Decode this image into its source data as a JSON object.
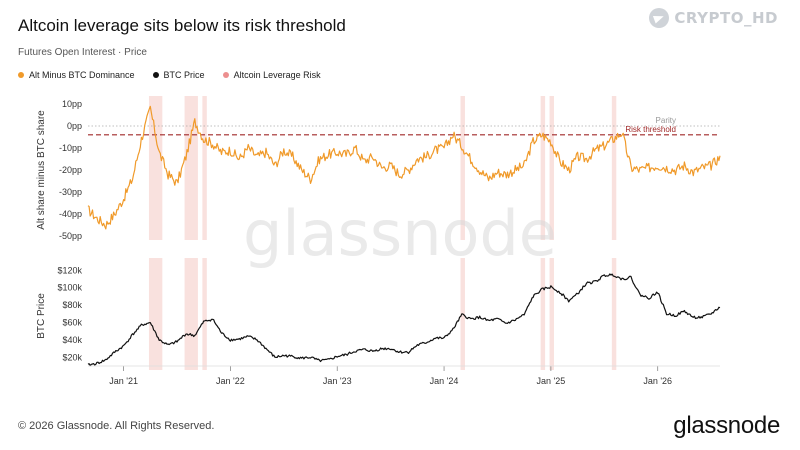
{
  "header": {
    "title": "Altcoin leverage sits below its risk threshold",
    "subtitle": "Futures Open Interest · Price"
  },
  "legend": [
    {
      "label": "Alt Minus BTC Dominance",
      "color": "#f09a2a"
    },
    {
      "label": "BTC Price",
      "color": "#111111"
    },
    {
      "label": "Altcoin Leverage Risk",
      "color": "#ec8f8f"
    }
  ],
  "badge": {
    "text": "CRYPTO_HD",
    "icon": "telegram-icon"
  },
  "watermark": "glassnode",
  "footer": {
    "copyright": "© 2026 Glassnode. All Rights Reserved.",
    "logo": "glassnode"
  },
  "chart_data": [
    {
      "type": "line",
      "ylabel": "Alt share minus BTC share",
      "ylim": [
        -50,
        10
      ],
      "yticks": [
        "10pp",
        "0pp",
        "-10pp",
        "-20pp",
        "-30pp",
        "-40pp",
        "-50pp"
      ],
      "ytick_values": [
        10,
        0,
        -10,
        -20,
        -30,
        -40,
        -50
      ],
      "xlim": [
        "2020-09",
        "2026-08"
      ],
      "xticks": [
        "Jan '21",
        "Jan '22",
        "Jan '23",
        "Jan '24",
        "Jan '25",
        "Jan '26"
      ],
      "xtick_values": [
        "2021-01",
        "2022-01",
        "2023-01",
        "2024-01",
        "2025-01",
        "2026-01"
      ],
      "annotations": [
        {
          "label": "Parity",
          "y": 0,
          "style": "dotted",
          "color": "#aaaaaa"
        },
        {
          "label": "Risk threshold",
          "y": -4,
          "style": "dashed",
          "color": "#a02828"
        }
      ],
      "series": [
        {
          "name": "Alt Minus BTC Dominance",
          "color": "#f09a2a",
          "x": [
            "2020-09",
            "2020-10",
            "2020-11",
            "2020-12",
            "2021-01",
            "2021-02",
            "2021-03",
            "2021-04",
            "2021-05",
            "2021-06",
            "2021-07",
            "2021-08",
            "2021-09",
            "2021-10",
            "2021-11",
            "2021-12",
            "2022-01",
            "2022-02",
            "2022-03",
            "2022-04",
            "2022-05",
            "2022-06",
            "2022-07",
            "2022-08",
            "2022-09",
            "2022-10",
            "2022-11",
            "2022-12",
            "2023-01",
            "2023-02",
            "2023-03",
            "2023-04",
            "2023-05",
            "2023-06",
            "2023-07",
            "2023-08",
            "2023-09",
            "2023-10",
            "2023-11",
            "2023-12",
            "2024-01",
            "2024-02",
            "2024-03",
            "2024-04",
            "2024-05",
            "2024-06",
            "2024-07",
            "2024-08",
            "2024-09",
            "2024-10",
            "2024-11",
            "2024-12",
            "2025-01",
            "2025-02",
            "2025-03",
            "2025-04",
            "2025-05",
            "2025-06",
            "2025-07",
            "2025-08",
            "2025-09",
            "2025-10",
            "2025-11",
            "2025-12",
            "2026-01",
            "2026-02",
            "2026-03",
            "2026-04",
            "2026-05",
            "2026-06",
            "2026-07",
            "2026-08"
          ],
          "y": [
            -38,
            -42,
            -45,
            -40,
            -33,
            -24,
            -6,
            8,
            -12,
            -22,
            -26,
            -14,
            2,
            -6,
            -8,
            -12,
            -11,
            -15,
            -10,
            -14,
            -12,
            -18,
            -11,
            -14,
            -20,
            -24,
            -15,
            -13,
            -12,
            -13,
            -10,
            -16,
            -14,
            -19,
            -18,
            -22,
            -20,
            -15,
            -14,
            -11,
            -10,
            -4,
            -9,
            -15,
            -20,
            -24,
            -21,
            -22,
            -20,
            -18,
            -7,
            -4,
            -7,
            -16,
            -20,
            -14,
            -15,
            -11,
            -9,
            -6,
            -3,
            -19,
            -20,
            -19,
            -18,
            -19,
            -20,
            -18,
            -21,
            -19,
            -18,
            -14
          ]
        }
      ],
      "risk_periods": [
        [
          "2021-04",
          "2021-05"
        ],
        [
          "2021-08",
          "2021-09"
        ],
        [
          "2021-10",
          "2021-10"
        ],
        [
          "2024-03",
          "2024-03"
        ],
        [
          "2024-12",
          "2024-12"
        ],
        [
          "2025-01",
          "2025-01"
        ],
        [
          "2025-08",
          "2025-08"
        ]
      ]
    },
    {
      "type": "line",
      "ylabel": "BTC Price",
      "ylim": [
        10,
        125
      ],
      "yticks": [
        "$120k",
        "$100k",
        "$80k",
        "$60k",
        "$40k",
        "$20k"
      ],
      "ytick_values": [
        120,
        100,
        80,
        60,
        40,
        20
      ],
      "xlim": [
        "2020-09",
        "2026-08"
      ],
      "series": [
        {
          "name": "BTC Price",
          "color": "#111111",
          "x": [
            "2020-09",
            "2020-10",
            "2020-11",
            "2020-12",
            "2021-01",
            "2021-02",
            "2021-03",
            "2021-04",
            "2021-05",
            "2021-06",
            "2021-07",
            "2021-08",
            "2021-09",
            "2021-10",
            "2021-11",
            "2021-12",
            "2022-01",
            "2022-02",
            "2022-03",
            "2022-04",
            "2022-05",
            "2022-06",
            "2022-07",
            "2022-08",
            "2022-09",
            "2022-10",
            "2022-11",
            "2022-12",
            "2023-01",
            "2023-02",
            "2023-03",
            "2023-04",
            "2023-05",
            "2023-06",
            "2023-07",
            "2023-08",
            "2023-09",
            "2023-10",
            "2023-11",
            "2023-12",
            "2024-01",
            "2024-02",
            "2024-03",
            "2024-04",
            "2024-05",
            "2024-06",
            "2024-07",
            "2024-08",
            "2024-09",
            "2024-10",
            "2024-11",
            "2024-12",
            "2025-01",
            "2025-02",
            "2025-03",
            "2025-04",
            "2025-05",
            "2025-06",
            "2025-07",
            "2025-08",
            "2025-09",
            "2025-10",
            "2025-11",
            "2025-12",
            "2026-01",
            "2026-02",
            "2026-03",
            "2026-04",
            "2026-05",
            "2026-06",
            "2026-07",
            "2026-08"
          ],
          "y": [
            11,
            13,
            17,
            26,
            33,
            46,
            57,
            60,
            40,
            34,
            38,
            47,
            45,
            61,
            64,
            48,
            40,
            41,
            44,
            40,
            30,
            20,
            22,
            21,
            19,
            20,
            16,
            17,
            21,
            23,
            27,
            29,
            27,
            30,
            30,
            26,
            26,
            34,
            37,
            42,
            42,
            52,
            69,
            64,
            66,
            62,
            64,
            59,
            63,
            69,
            90,
            98,
            101,
            95,
            85,
            93,
            105,
            107,
            114,
            115,
            110,
            112,
            92,
            88,
            95,
            70,
            68,
            73,
            66,
            66,
            70,
            78
          ]
        }
      ]
    }
  ]
}
